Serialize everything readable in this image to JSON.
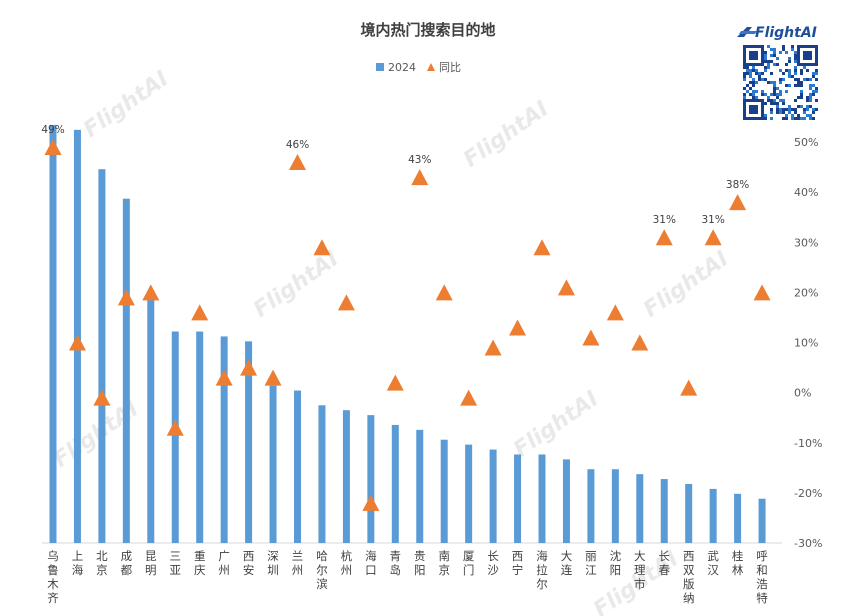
{
  "chart_data": {
    "type": "bar",
    "title": "境内热门搜索目的地",
    "categories": [
      "乌鲁木齐",
      "上海",
      "北京",
      "成都",
      "昆明",
      "三亚",
      "重庆",
      "广州",
      "西安",
      "深圳",
      "兰州",
      "哈尔滨",
      "杭州",
      "海口",
      "青岛",
      "贵阳",
      "南京",
      "厦门",
      "长沙",
      "西宁",
      "海拉尔",
      "大连",
      "丽江",
      "沈阳",
      "大理市",
      "长春",
      "西双版纳",
      "武汉",
      "桂林",
      "呼和浩特"
    ],
    "series": [
      {
        "name": "2024",
        "chart_type": "bar",
        "axis": "left-hidden",
        "values": [
          85,
          84,
          76,
          70,
          51,
          43,
          43,
          42,
          41,
          32,
          31,
          28,
          27,
          26,
          24,
          23,
          21,
          20,
          19,
          18,
          18,
          17,
          15,
          15,
          14,
          13,
          12,
          11,
          10,
          9
        ]
      },
      {
        "name": "同比",
        "chart_type": "scatter",
        "marker": "triangle",
        "axis": "right",
        "unit": "%",
        "values": [
          49,
          10,
          -1,
          19,
          20,
          -7,
          16,
          3,
          5,
          3,
          46,
          29,
          18,
          -22,
          2,
          43,
          20,
          -1,
          9,
          13,
          29,
          21,
          11,
          16,
          10,
          31,
          1,
          31,
          38,
          20
        ]
      }
    ],
    "data_labels": [
      {
        "index": 0,
        "text": "49%"
      },
      {
        "index": 10,
        "text": "46%"
      },
      {
        "index": 15,
        "text": "43%"
      },
      {
        "index": 25,
        "text": "31%"
      },
      {
        "index": 27,
        "text": "31%"
      },
      {
        "index": 28,
        "text": "38%"
      }
    ],
    "y2_ticks": [
      "50%",
      "40%",
      "30%",
      "20%",
      "10%",
      "0%",
      "-10%",
      "-20%",
      "-30%"
    ],
    "y2_lim": [
      -30,
      50
    ],
    "y1_lim": [
      0,
      86
    ],
    "legend": {
      "position": "top-center",
      "items": [
        "2024",
        "同比"
      ]
    },
    "grid": false,
    "colors": {
      "bar": "#5b9bd5",
      "marker": "#ed7d31"
    }
  },
  "branding": {
    "logo_text": "FlightAI",
    "watermark_text": "FlightAI"
  }
}
